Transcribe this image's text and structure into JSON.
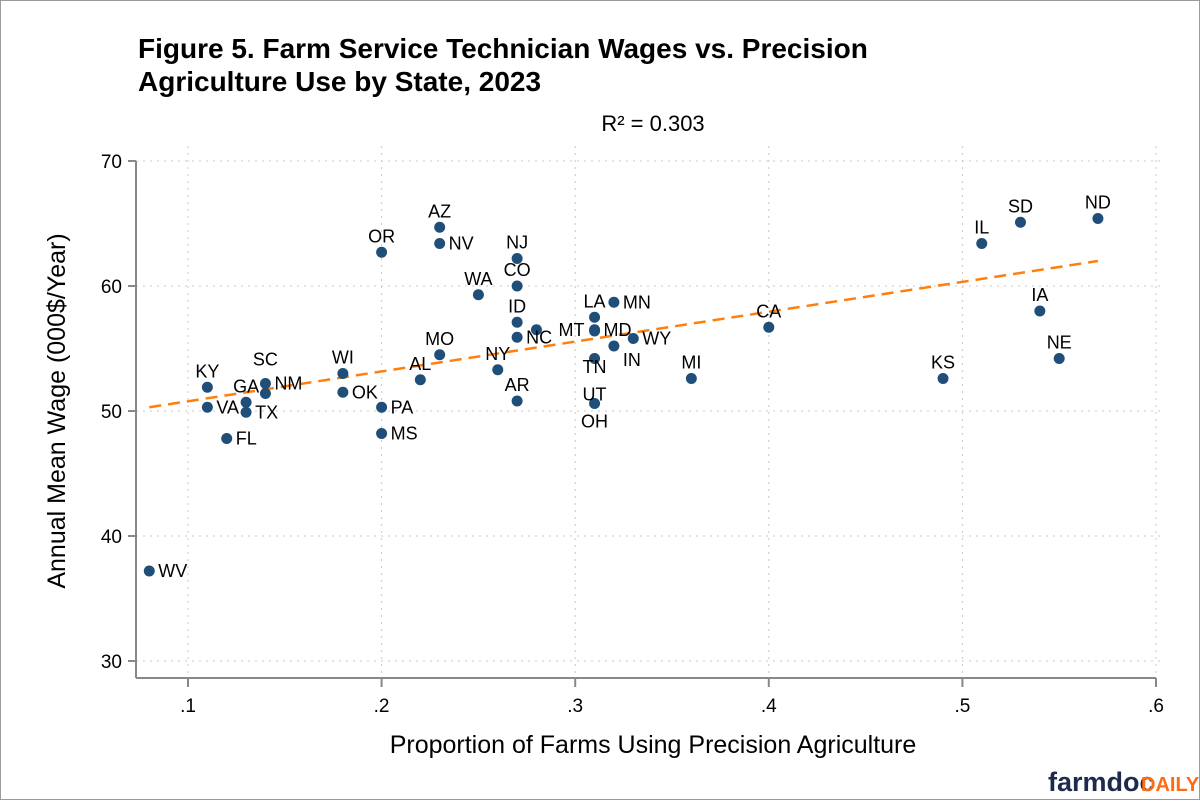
{
  "chart_data": {
    "type": "scatter",
    "title": "Figure 5. Farm Service Technician Wages vs. Precision Agriculture Use by State, 2023",
    "title_lines": [
      "Figure 5. Farm Service Technician Wages vs. Precision",
      "Agriculture Use by State, 2023"
    ],
    "subtitle": "R² = 0.303",
    "xlabel": "Proportion of Farms Using Precision Agriculture",
    "ylabel": "Annual Mean Wage (000$/Year)",
    "xlim": [
      0.07,
      0.6
    ],
    "ylim": [
      30,
      70
    ],
    "xticks": [
      0.1,
      0.2,
      0.3,
      0.4,
      0.5,
      0.6
    ],
    "xtick_labels": [
      ".1",
      ".2",
      ".3",
      ".4",
      ".5",
      ".6"
    ],
    "yticks": [
      30,
      40,
      50,
      60,
      70
    ],
    "ytick_labels": [
      "30",
      "40",
      "50",
      "60",
      "70"
    ],
    "grid": true,
    "point_color": "#1f4e79",
    "fit_color": "#ff7f0e",
    "fit_line": {
      "style": "dashed",
      "x": [
        0.08,
        0.57
      ],
      "y": [
        50.3,
        62.0
      ]
    },
    "points": [
      {
        "label": "WV",
        "x": 0.08,
        "y": 37.2
      },
      {
        "label": "KY",
        "x": 0.11,
        "y": 51.9
      },
      {
        "label": "VA",
        "x": 0.11,
        "y": 50.3
      },
      {
        "label": "FL",
        "x": 0.12,
        "y": 47.8
      },
      {
        "label": "GA",
        "x": 0.13,
        "y": 50.7
      },
      {
        "label": "TX",
        "x": 0.13,
        "y": 49.9
      },
      {
        "label": "NM",
        "x": 0.14,
        "y": 52.2
      },
      {
        "label": "SC",
        "x": 0.14,
        "y": 51.4
      },
      {
        "label": "WI",
        "x": 0.18,
        "y": 53.0
      },
      {
        "label": "OK",
        "x": 0.18,
        "y": 51.5
      },
      {
        "label": "OR",
        "x": 0.2,
        "y": 62.7
      },
      {
        "label": "PA",
        "x": 0.2,
        "y": 50.3
      },
      {
        "label": "MS",
        "x": 0.2,
        "y": 48.2
      },
      {
        "label": "AL",
        "x": 0.22,
        "y": 52.5
      },
      {
        "label": "AZ",
        "x": 0.23,
        "y": 64.7
      },
      {
        "label": "NV",
        "x": 0.23,
        "y": 63.4
      },
      {
        "label": "MO",
        "x": 0.23,
        "y": 54.5
      },
      {
        "label": "WA",
        "x": 0.25,
        "y": 59.3
      },
      {
        "label": "NY",
        "x": 0.26,
        "y": 53.3
      },
      {
        "label": "NJ",
        "x": 0.27,
        "y": 62.2
      },
      {
        "label": "CO",
        "x": 0.27,
        "y": 60.0
      },
      {
        "label": "ID",
        "x": 0.27,
        "y": 57.1
      },
      {
        "label": "NC",
        "x": 0.27,
        "y": 55.9
      },
      {
        "label": "AR",
        "x": 0.27,
        "y": 50.8
      },
      {
        "label": "MT",
        "x": 0.28,
        "y": 56.5
      },
      {
        "label": "LA",
        "x": 0.31,
        "y": 57.5
      },
      {
        "label": "MD",
        "x": 0.31,
        "y": 56.5
      },
      {
        "label": "TN",
        "x": 0.31,
        "y": 56.4
      },
      {
        "label": "UT",
        "x": 0.31,
        "y": 54.2
      },
      {
        "label": "OH",
        "x": 0.31,
        "y": 50.6
      },
      {
        "label": "MN",
        "x": 0.32,
        "y": 58.7
      },
      {
        "label": "IN",
        "x": 0.32,
        "y": 55.2
      },
      {
        "label": "WY",
        "x": 0.33,
        "y": 55.8
      },
      {
        "label": "MI",
        "x": 0.36,
        "y": 52.6
      },
      {
        "label": "CA",
        "x": 0.4,
        "y": 56.7
      },
      {
        "label": "KS",
        "x": 0.49,
        "y": 52.6
      },
      {
        "label": "IL",
        "x": 0.51,
        "y": 63.4
      },
      {
        "label": "SD",
        "x": 0.53,
        "y": 65.1
      },
      {
        "label": "IA",
        "x": 0.54,
        "y": 58.0
      },
      {
        "label": "NE",
        "x": 0.55,
        "y": 54.2
      },
      {
        "label": "ND",
        "x": 0.57,
        "y": 65.4
      }
    ]
  },
  "logo": {
    "text_main": "farmdoc",
    "text_accent": "DAILY",
    "main_color": "#1d2a4d",
    "accent_color": "#ff6a13"
  }
}
